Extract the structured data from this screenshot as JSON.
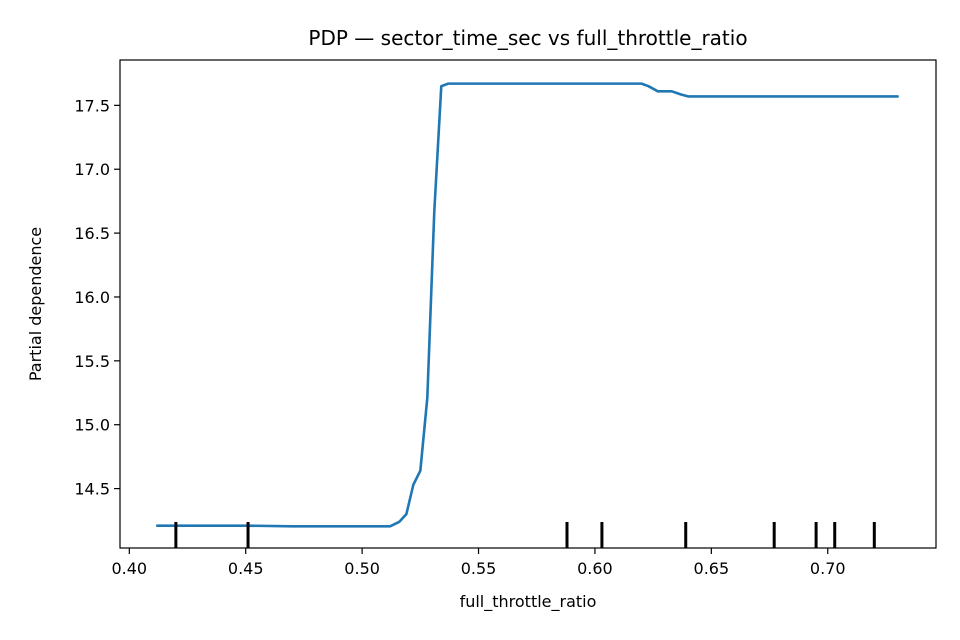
{
  "chart_data": {
    "type": "line",
    "title": "PDP — sector_time_sec vs full_throttle_ratio",
    "xlabel": "full_throttle_ratio",
    "ylabel": "Partial dependence",
    "xlim": [
      0.396,
      0.7465
    ],
    "ylim": [
      14.035,
      17.855
    ],
    "xticks": [
      0.4,
      0.45,
      0.5,
      0.55,
      0.6,
      0.65,
      0.7
    ],
    "xtick_labels": [
      "0.40",
      "0.45",
      "0.50",
      "0.55",
      "0.60",
      "0.65",
      "0.70"
    ],
    "yticks": [
      14.5,
      15.0,
      15.5,
      16.0,
      16.5,
      17.0,
      17.5
    ],
    "ytick_labels": [
      "14.5",
      "15.0",
      "15.5",
      "16.0",
      "16.5",
      "17.0",
      "17.5"
    ],
    "grid": false,
    "series": [
      {
        "color": "#1f77b4",
        "x": [
          0.412,
          0.43,
          0.45,
          0.47,
          0.49,
          0.505,
          0.512,
          0.516,
          0.519,
          0.522,
          0.525,
          0.528,
          0.531,
          0.534,
          0.537,
          0.545,
          0.56,
          0.58,
          0.6,
          0.62,
          0.623,
          0.627,
          0.633,
          0.637,
          0.64,
          0.65,
          0.68,
          0.7,
          0.73
        ],
        "y": [
          14.21,
          14.21,
          14.21,
          14.205,
          14.205,
          14.205,
          14.205,
          14.24,
          14.3,
          14.53,
          14.64,
          15.21,
          16.67,
          17.65,
          17.67,
          17.67,
          17.67,
          17.67,
          17.67,
          17.67,
          17.65,
          17.61,
          17.61,
          17.585,
          17.57,
          17.57,
          17.57,
          17.57,
          17.57
        ]
      }
    ],
    "rug_x": [
      0.42,
      0.451,
      0.588,
      0.603,
      0.639,
      0.677,
      0.695,
      0.703,
      0.72
    ]
  }
}
